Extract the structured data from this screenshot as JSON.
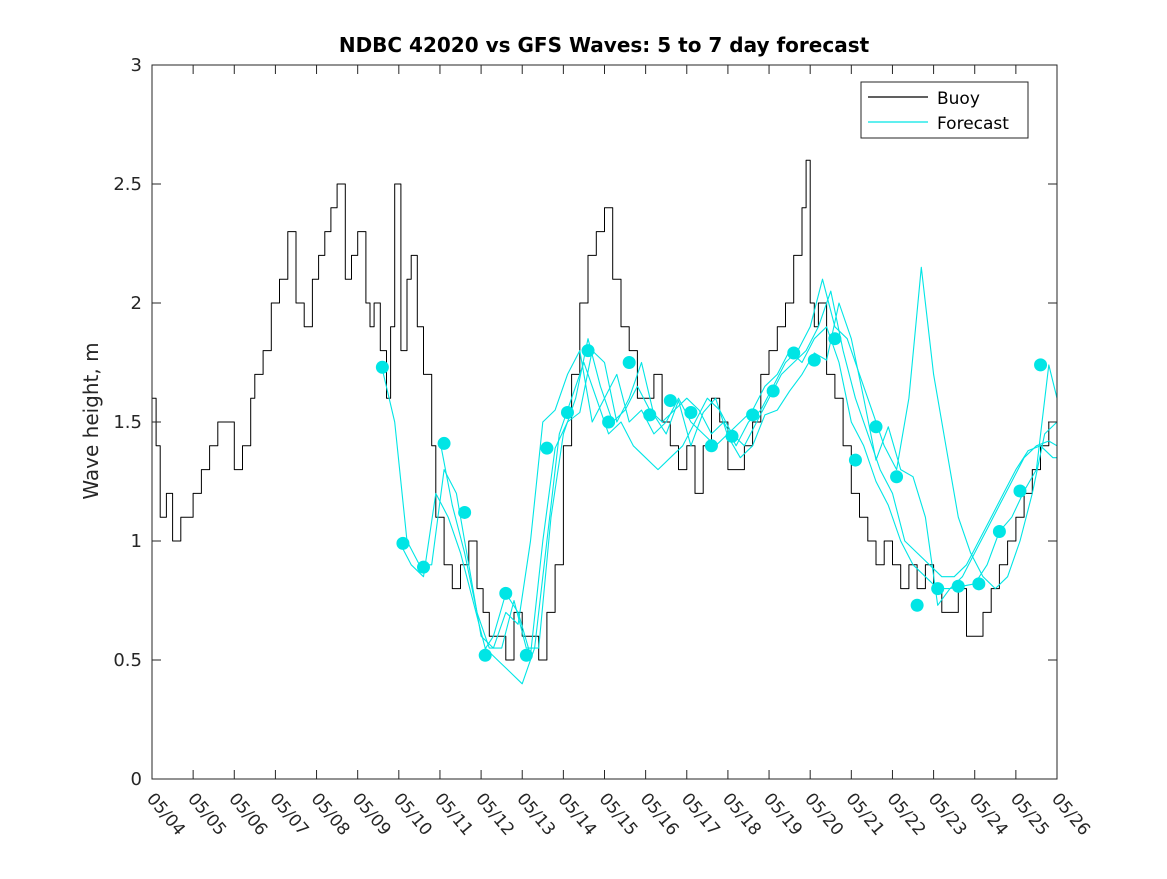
{
  "chart_data": {
    "type": "line",
    "title": "NDBC 42020 vs GFS Waves: 5 to 7 day forecast",
    "xlabel": "",
    "ylabel": "Wave height, m",
    "xlim": [
      0,
      22
    ],
    "ylim": [
      0,
      3
    ],
    "x_ticks": [
      {
        "v": 0,
        "label": "05/04"
      },
      {
        "v": 1,
        "label": "05/05"
      },
      {
        "v": 2,
        "label": "05/06"
      },
      {
        "v": 3,
        "label": "05/07"
      },
      {
        "v": 4,
        "label": "05/08"
      },
      {
        "v": 5,
        "label": "05/09"
      },
      {
        "v": 6,
        "label": "05/10"
      },
      {
        "v": 7,
        "label": "05/11"
      },
      {
        "v": 8,
        "label": "05/12"
      },
      {
        "v": 9,
        "label": "05/13"
      },
      {
        "v": 10,
        "label": "05/14"
      },
      {
        "v": 11,
        "label": "05/15"
      },
      {
        "v": 12,
        "label": "05/16"
      },
      {
        "v": 13,
        "label": "05/17"
      },
      {
        "v": 14,
        "label": "05/18"
      },
      {
        "v": 15,
        "label": "05/19"
      },
      {
        "v": 16,
        "label": "05/20"
      },
      {
        "v": 17,
        "label": "05/21"
      },
      {
        "v": 18,
        "label": "05/22"
      },
      {
        "v": 19,
        "label": "05/23"
      },
      {
        "v": 20,
        "label": "05/24"
      },
      {
        "v": 21,
        "label": "05/25"
      },
      {
        "v": 22,
        "label": "05/26"
      }
    ],
    "y_ticks": [
      {
        "v": 0,
        "label": "0"
      },
      {
        "v": 0.5,
        "label": "0.5"
      },
      {
        "v": 1,
        "label": "1"
      },
      {
        "v": 1.5,
        "label": "1.5"
      },
      {
        "v": 2,
        "label": "2"
      },
      {
        "v": 2.5,
        "label": "2.5"
      },
      {
        "v": 3,
        "label": "3"
      }
    ],
    "legend": {
      "placement": "top-right",
      "entries": [
        {
          "label": "Buoy",
          "color": "#000000"
        },
        {
          "label": "Forecast",
          "color": "#00e5e5"
        }
      ]
    },
    "colors": {
      "buoy": "#000000",
      "forecast": "#00e5e5",
      "axes": "#262626"
    },
    "series": [
      {
        "name": "Buoy",
        "x": [
          0,
          0.1,
          0.2,
          0.35,
          0.5,
          0.7,
          0.9,
          1.0,
          1.2,
          1.4,
          1.6,
          1.8,
          2.0,
          2.2,
          2.4,
          2.5,
          2.7,
          2.9,
          3.1,
          3.3,
          3.5,
          3.7,
          3.9,
          4.05,
          4.2,
          4.35,
          4.5,
          4.7,
          4.85,
          5.0,
          5.2,
          5.3,
          5.4,
          5.55,
          5.7,
          5.8,
          5.9,
          6.05,
          6.2,
          6.3,
          6.45,
          6.6,
          6.8,
          6.9,
          7.1,
          7.3,
          7.5,
          7.7,
          7.9,
          8.05,
          8.2,
          8.4,
          8.6,
          8.8,
          9.0,
          9.2,
          9.4,
          9.6,
          9.8,
          10.0,
          10.2,
          10.4,
          10.6,
          10.8,
          11.0,
          11.2,
          11.4,
          11.6,
          11.8,
          12.0,
          12.2,
          12.4,
          12.6,
          12.8,
          13.0,
          13.2,
          13.4,
          13.6,
          13.8,
          14.0,
          14.2,
          14.4,
          14.6,
          14.8,
          15.0,
          15.2,
          15.4,
          15.6,
          15.8,
          15.9,
          16.0,
          16.1,
          16.2,
          16.4,
          16.6,
          16.8,
          17.0,
          17.2,
          17.4,
          17.6,
          17.8,
          18.0,
          18.2,
          18.4,
          18.6,
          18.8,
          19.0,
          19.2,
          19.4,
          19.6,
          19.8,
          20.0,
          20.2,
          20.4,
          20.6,
          20.8,
          21.0,
          21.2,
          21.4,
          21.6,
          21.8,
          22.0
        ],
        "values": [
          1.6,
          1.4,
          1.1,
          1.2,
          1.0,
          1.1,
          1.1,
          1.2,
          1.3,
          1.4,
          1.5,
          1.5,
          1.3,
          1.4,
          1.6,
          1.7,
          1.8,
          2.0,
          2.1,
          2.3,
          2.0,
          1.9,
          2.1,
          2.2,
          2.3,
          2.4,
          2.5,
          2.1,
          2.2,
          2.3,
          2.0,
          1.9,
          2.0,
          1.8,
          1.6,
          1.9,
          2.5,
          1.8,
          2.1,
          2.2,
          1.9,
          1.7,
          1.4,
          1.1,
          0.9,
          0.8,
          0.9,
          1.0,
          0.8,
          0.7,
          0.6,
          0.6,
          0.5,
          0.7,
          0.6,
          0.6,
          0.5,
          0.7,
          0.9,
          1.4,
          1.7,
          2.0,
          2.2,
          2.3,
          2.4,
          2.1,
          1.9,
          1.8,
          1.6,
          1.6,
          1.7,
          1.5,
          1.4,
          1.3,
          1.4,
          1.2,
          1.4,
          1.6,
          1.5,
          1.3,
          1.3,
          1.4,
          1.5,
          1.7,
          1.8,
          1.9,
          2.0,
          2.2,
          2.4,
          2.6,
          2.0,
          1.9,
          2.0,
          1.7,
          1.6,
          1.4,
          1.2,
          1.1,
          1.0,
          0.9,
          1.0,
          0.9,
          0.8,
          0.9,
          0.8,
          0.9,
          0.8,
          0.7,
          0.7,
          0.8,
          0.6,
          0.6,
          0.7,
          0.8,
          0.9,
          1.0,
          1.1,
          1.2,
          1.3,
          1.4,
          1.5,
          1.5
        ]
      },
      {
        "name": "",
        "x": [
          5.6,
          5.9,
          6.2,
          6.5,
          6.8,
          7.1,
          7.4,
          7.7,
          8.0,
          8.3,
          8.6,
          8.9,
          9.2,
          9.5,
          9.8,
          10.1,
          10.4,
          10.7,
          11.0,
          11.3,
          11.6,
          11.9,
          12.2,
          12.5,
          12.8,
          13.1,
          13.4,
          13.7,
          14.0,
          14.3,
          14.6,
          14.9,
          15.2,
          15.5,
          15.8,
          16.1,
          16.4,
          16.7,
          17.0,
          17.3,
          17.6,
          17.9,
          18.2,
          18.5,
          18.8,
          19.1,
          19.4,
          19.7,
          20.0,
          20.3,
          20.6,
          20.9,
          21.2,
          21.5,
          21.8,
          22.0
        ],
        "values": [
          1.72,
          1.5,
          1.0,
          0.9,
          0.9,
          1.3,
          1.2,
          0.9,
          0.6,
          0.55,
          0.7,
          0.65,
          1.0,
          1.5,
          1.55,
          1.7,
          1.8,
          1.5,
          1.6,
          1.7,
          1.5,
          1.55,
          1.45,
          1.5,
          1.6,
          1.5,
          1.45,
          1.4,
          1.45,
          1.5,
          1.55,
          1.65,
          1.7,
          1.8,
          1.75,
          1.85,
          1.9,
          1.75,
          1.5,
          1.4,
          1.25,
          1.15,
          1.0,
          0.9,
          0.85,
          0.8,
          0.8,
          0.85,
          0.95,
          1.05,
          1.15,
          1.25,
          1.35,
          1.4,
          1.42,
          1.4
        ]
      },
      {
        "name": "",
        "x": [
          6.0,
          6.3,
          6.6,
          6.9,
          7.2,
          7.5,
          7.8,
          8.1,
          8.4,
          8.7,
          9.0,
          9.3,
          9.6,
          9.9,
          10.2,
          10.5,
          10.8,
          11.1,
          11.4,
          11.7,
          12.0,
          12.3,
          12.6,
          12.9,
          13.2,
          13.5,
          13.8,
          14.1,
          14.4,
          14.7,
          15.0,
          15.3,
          15.6,
          15.9,
          16.2,
          16.5,
          16.8,
          17.1,
          17.4,
          17.7,
          18.0,
          18.3,
          18.6,
          18.9,
          19.2,
          19.5,
          19.8,
          20.1,
          20.4,
          20.7,
          21.0,
          21.3,
          21.6,
          21.9,
          22.0
        ],
        "values": [
          1.0,
          0.9,
          0.85,
          1.2,
          1.1,
          0.95,
          0.75,
          0.55,
          0.5,
          0.45,
          0.4,
          0.55,
          1.0,
          1.45,
          1.6,
          1.75,
          1.6,
          1.45,
          1.5,
          1.4,
          1.35,
          1.3,
          1.35,
          1.4,
          1.5,
          1.6,
          1.55,
          1.45,
          1.4,
          1.5,
          1.6,
          1.7,
          1.75,
          1.8,
          1.9,
          2.05,
          1.8,
          1.6,
          1.45,
          1.3,
          1.2,
          1.0,
          0.95,
          0.9,
          0.85,
          0.85,
          0.9,
          1.0,
          1.1,
          1.2,
          1.3,
          1.38,
          1.4,
          1.35,
          1.35
        ]
      },
      {
        "name": "",
        "x": [
          7.0,
          7.3,
          7.6,
          7.9,
          8.2,
          8.5,
          8.8,
          9.1,
          9.4,
          9.7,
          10.0,
          10.3,
          10.6,
          10.9,
          11.2,
          11.5,
          11.8,
          12.1,
          12.4,
          12.7,
          13.0,
          13.3,
          13.6,
          13.9,
          14.2,
          14.5,
          14.8,
          15.1,
          15.4,
          15.7,
          16.0,
          16.3,
          16.6,
          16.9,
          17.2,
          17.5,
          17.8,
          18.1,
          18.4,
          18.7,
          19.0,
          19.3,
          19.6,
          19.9,
          20.2,
          20.5,
          20.8,
          21.1,
          21.4,
          21.7,
          22.0
        ],
        "values": [
          1.42,
          1.15,
          0.95,
          0.7,
          0.55,
          0.55,
          0.75,
          0.55,
          0.55,
          1.1,
          1.45,
          1.6,
          1.85,
          1.65,
          1.5,
          1.55,
          1.65,
          1.55,
          1.5,
          1.55,
          1.6,
          1.55,
          1.45,
          1.5,
          1.4,
          1.5,
          1.55,
          1.65,
          1.75,
          1.8,
          1.9,
          2.1,
          1.9,
          1.85,
          1.7,
          1.55,
          1.4,
          1.3,
          1.6,
          2.15,
          1.7,
          1.4,
          1.1,
          0.95,
          0.85,
          0.8,
          0.85,
          1.0,
          1.2,
          1.45,
          1.5
        ]
      },
      {
        "name": "",
        "x": [
          8.0,
          8.3,
          8.6,
          8.9,
          9.2,
          9.5,
          9.8,
          10.1,
          10.4,
          10.7,
          11.0,
          11.3,
          11.6,
          11.9,
          12.2,
          12.5,
          12.8,
          13.1,
          13.4,
          13.7,
          14.0,
          14.3,
          14.6,
          14.9,
          15.2,
          15.5,
          15.8,
          16.1,
          16.4,
          16.7,
          17.0,
          17.3,
          17.6,
          17.9,
          18.2,
          18.5,
          18.8,
          19.1,
          19.4,
          19.7,
          20.0,
          20.3,
          20.6,
          20.9,
          21.2,
          21.5,
          21.8,
          22.0
        ],
        "values": [
          0.52,
          0.6,
          0.78,
          0.7,
          0.52,
          1.0,
          1.39,
          1.5,
          1.54,
          1.8,
          1.75,
          1.5,
          1.6,
          1.75,
          1.53,
          1.45,
          1.59,
          1.4,
          1.54,
          1.6,
          1.44,
          1.35,
          1.4,
          1.53,
          1.55,
          1.63,
          1.7,
          1.79,
          1.76,
          2.0,
          1.85,
          1.6,
          1.34,
          1.48,
          1.3,
          1.27,
          1.1,
          0.73,
          0.8,
          0.81,
          0.82,
          0.9,
          1.04,
          1.1,
          1.21,
          1.3,
          1.74,
          1.6
        ]
      }
    ],
    "forecast_points": {
      "x": [
        5.6,
        6.1,
        6.6,
        7.1,
        7.6,
        8.1,
        8.6,
        9.1,
        9.6,
        10.1,
        10.6,
        11.1,
        11.6,
        12.1,
        12.6,
        13.1,
        13.6,
        14.1,
        14.6,
        15.1,
        15.6,
        16.1,
        16.6,
        17.1,
        17.6,
        18.1,
        18.6,
        19.1,
        19.6,
        20.1,
        20.6,
        21.1,
        21.6
      ],
      "values": [
        1.73,
        0.99,
        0.89,
        1.41,
        1.12,
        0.52,
        0.78,
        0.52,
        1.39,
        1.54,
        1.8,
        1.5,
        1.75,
        1.53,
        1.59,
        1.54,
        1.4,
        1.44,
        1.53,
        1.63,
        1.79,
        1.76,
        1.85,
        1.34,
        1.48,
        1.27,
        0.73,
        0.8,
        0.81,
        0.82,
        1.04,
        1.21,
        1.74
      ]
    }
  }
}
